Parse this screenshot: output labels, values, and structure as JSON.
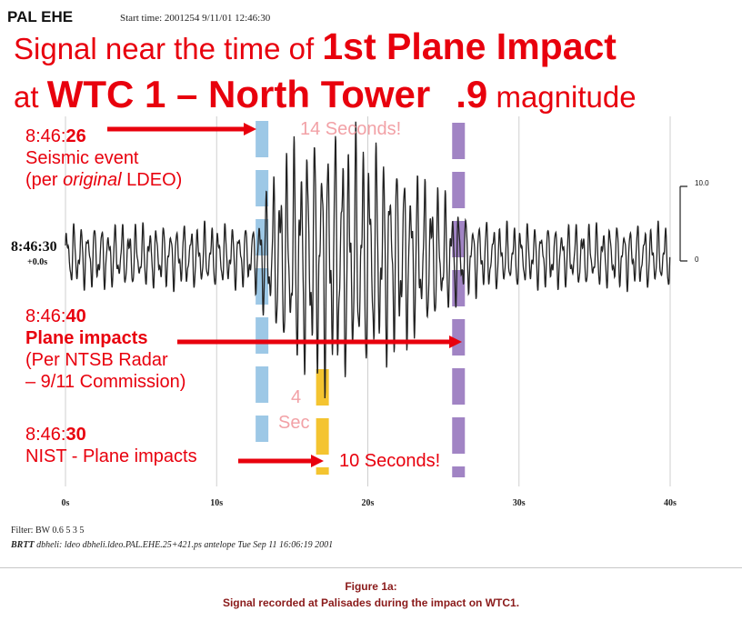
{
  "header": {
    "station": "PAL EHE",
    "start_time": "Start time: 2001254  9/11/01 12:46:30"
  },
  "headline": {
    "line1_prefix": "Signal near the time of ",
    "line1_bold": "1st Plane Impact",
    "line2_prefix": "at ",
    "line2_bold": "WTC 1 – North Tower",
    "line2_mag": ".9",
    "line2_suffix": " magnitude"
  },
  "annotations": {
    "a1_time_prefix": "8:46:",
    "a1_time_bold": "26",
    "a1_line2": "Seismic event",
    "a1_line3_prefix": "(per ",
    "a1_line3_italic": "original",
    "a1_line3_suffix": " LDEO)",
    "a2_time_prefix": "8:46:",
    "a2_time_bold": "40",
    "a2_line2": "Plane impacts",
    "a2_line3": "(Per NTSB Radar",
    "a2_line4": "– 9/11 Commission)",
    "a3_time_prefix": "8:46:",
    "a3_time_bold": "30",
    "a3_line2": "NIST - Plane impacts",
    "fourteen": "14 Seconds!",
    "four_a": "4",
    "four_b": "Sec",
    "ten": "10 Seconds!"
  },
  "seismo_labels": {
    "left_time": "8:46:30",
    "left_offset": "+0.0s",
    "scale_top": "10.0",
    "scale_bottom": "0"
  },
  "footer": {
    "filter": "Filter: BW 0.6 5 3 5",
    "brtt_bold": "BRTT",
    "brtt_text": " dbheli: ldeo dbheli.ldeo.PAL.EHE.25+421.ps antelope  Tue Sep 11 16:06:19 2001",
    "figure_title": "Figure 1a:",
    "figure_caption": "Signal recorded at Palisades during the impact on WTC1."
  },
  "colors": {
    "accent_red": "#e8000d",
    "pink_text": "#f2a1a6",
    "blue_marker": "#9dc8e6",
    "yellow_marker": "#f4c430",
    "purple_marker": "#a184c4",
    "caption": "#8a1a1a"
  },
  "chart_data": {
    "type": "line",
    "title": "",
    "xlabel": "",
    "ylabel": "",
    "x_unit": "s",
    "xlim": [
      0,
      40
    ],
    "ticks": [
      {
        "value": 0,
        "label": "0s"
      },
      {
        "value": 10,
        "label": "10s"
      },
      {
        "value": 20,
        "label": "20s"
      },
      {
        "value": 30,
        "label": "30s"
      },
      {
        "value": 40,
        "label": "40s"
      }
    ],
    "grid": true,
    "markers": [
      {
        "name": "blue",
        "x": 13,
        "label": "8:46:26"
      },
      {
        "name": "yellow",
        "x": 17,
        "label": "8:46:30"
      },
      {
        "name": "purple",
        "x": 26,
        "label": "8:46:40"
      }
    ],
    "envelope": [
      {
        "t": 0,
        "a": 0.3
      },
      {
        "t": 12.5,
        "a": 0.3
      },
      {
        "t": 13,
        "a": 0.55
      },
      {
        "t": 14,
        "a": 0.8
      },
      {
        "t": 15,
        "a": 1.05
      },
      {
        "t": 17,
        "a": 1.2
      },
      {
        "t": 19,
        "a": 1.15
      },
      {
        "t": 21,
        "a": 1.0
      },
      {
        "t": 23,
        "a": 0.8
      },
      {
        "t": 25,
        "a": 0.6
      },
      {
        "t": 26.5,
        "a": 0.38
      },
      {
        "t": 29,
        "a": 0.3
      },
      {
        "t": 40,
        "a": 0.3
      }
    ]
  }
}
